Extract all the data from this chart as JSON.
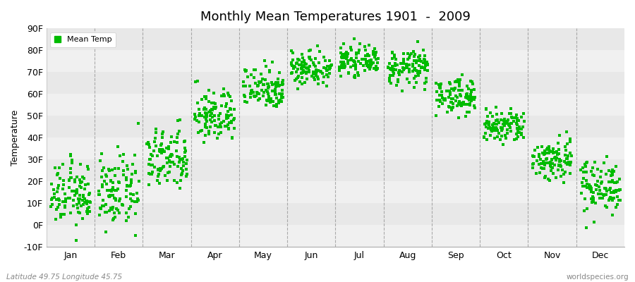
{
  "title": "Monthly Mean Temperatures 1901  -  2009",
  "ylabel": "Temperature",
  "xlabel_bottom_left": "Latitude 49.75 Longitude 45.75",
  "xlabel_bottom_right": "worldspecies.org",
  "ylim": [
    -10,
    90
  ],
  "yticks": [
    -10,
    0,
    10,
    20,
    30,
    40,
    50,
    60,
    70,
    80,
    90
  ],
  "ytick_labels": [
    "-10F",
    "0F",
    "10F",
    "20F",
    "30F",
    "40F",
    "50F",
    "60F",
    "70F",
    "80F",
    "90F"
  ],
  "months": [
    "Jan",
    "Feb",
    "Mar",
    "Apr",
    "May",
    "Jun",
    "Jul",
    "Aug",
    "Sep",
    "Oct",
    "Nov",
    "Dec"
  ],
  "marker_color": "#00bb00",
  "marker": "s",
  "marker_size": 3.5,
  "background_color": "#ffffff",
  "band_colors": [
    "#f0f0f0",
    "#e8e8e8"
  ],
  "legend_label": "Mean Temp",
  "title_fontsize": 13,
  "axis_fontsize": 9,
  "real_means": {
    "Jan": 14,
    "Feb": 15,
    "Mar": 30,
    "Apr": 50,
    "May": 63,
    "Jun": 72,
    "Jul": 75,
    "Aug": 72,
    "Sep": 59,
    "Oct": 45,
    "Nov": 30,
    "Dec": 18
  },
  "real_spreads": {
    "Jan": 7,
    "Feb": 8,
    "Mar": 7,
    "Apr": 6,
    "May": 5,
    "Jun": 4,
    "Jul": 3,
    "Aug": 4,
    "Sep": 4,
    "Oct": 4,
    "Nov": 5,
    "Dec": 6
  }
}
